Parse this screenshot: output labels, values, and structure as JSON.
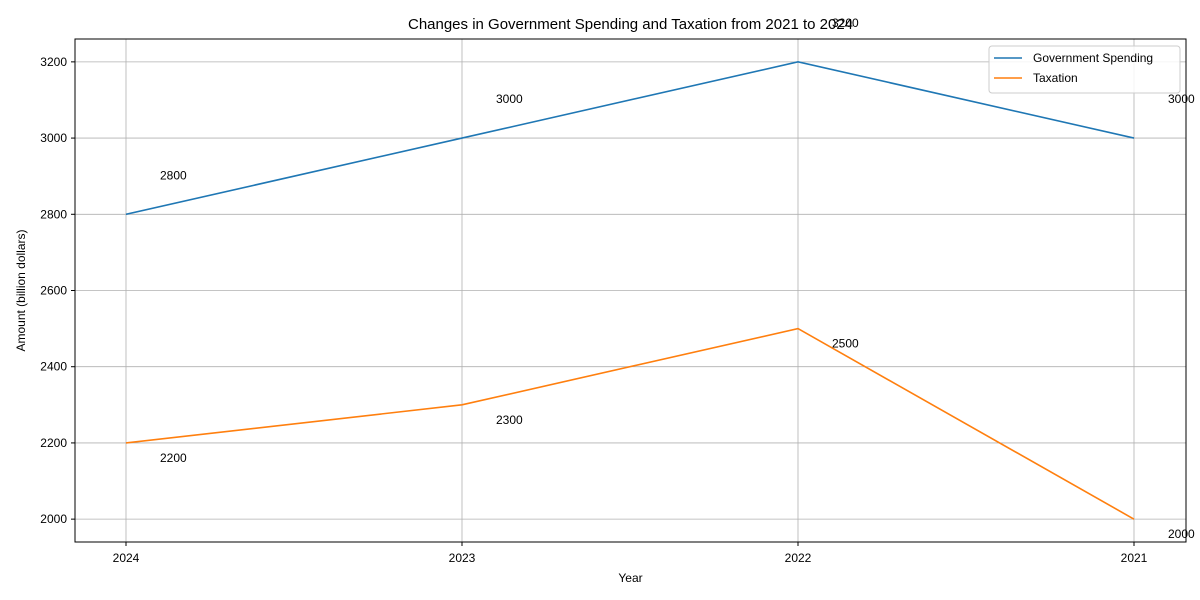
{
  "chart_data": {
    "type": "line",
    "title": "Changes in Government Spending and Taxation from 2021 to 2024",
    "xlabel": "Year",
    "ylabel": "Amount (billion dollars)",
    "categories": [
      "2024",
      "2023",
      "2022",
      "2021"
    ],
    "series": [
      {
        "name": "Government Spending",
        "color": "#1f77b4",
        "values": [
          2800,
          3000,
          3200,
          3000
        ],
        "labels": [
          "2800",
          "3000",
          "3200",
          "3000"
        ]
      },
      {
        "name": "Taxation",
        "color": "#ff7f0e",
        "values": [
          2200,
          2300,
          2500,
          2000
        ],
        "labels": [
          "2200",
          "2300",
          "2500",
          "2000"
        ]
      }
    ],
    "yticks": [
      2000,
      2200,
      2400,
      2600,
      2800,
      3000,
      3200
    ],
    "ytick_labels": [
      "2000",
      "2200",
      "2400",
      "2600",
      "2800",
      "3000",
      "3200"
    ],
    "ylim": [
      1940,
      3260
    ],
    "grid": true,
    "legend": "top-right"
  }
}
